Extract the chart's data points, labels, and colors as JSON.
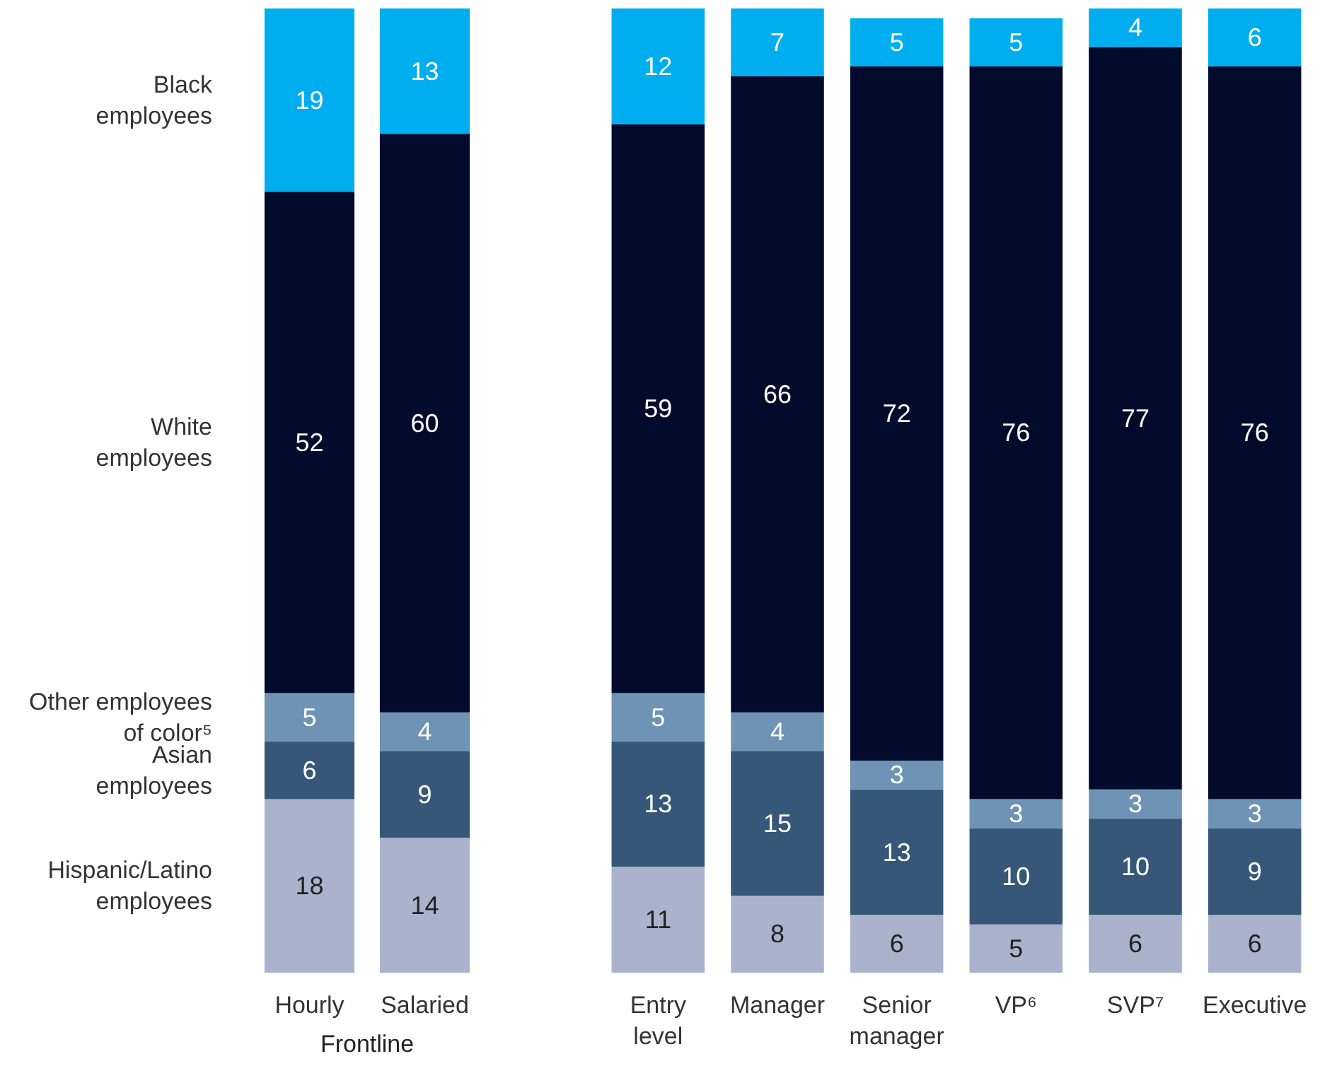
{
  "chart_data": [
    {
      "type": "bar",
      "stacked": true,
      "data_labels": true,
      "legend": "left",
      "xlabel": "Frontline",
      "categories": [
        "Hourly",
        "Salaried"
      ],
      "series": [
        {
          "name": "Hispanic/Latino employees",
          "color": "#a9b4cc",
          "values": [
            18,
            14
          ]
        },
        {
          "name": "Asian employees",
          "color": "#365778",
          "values": [
            6,
            9
          ]
        },
        {
          "name": "Other employees of color⁵",
          "color": "#6e93b5",
          "values": [
            5,
            4
          ]
        },
        {
          "name": "White employees",
          "color": "#020b2c",
          "values": [
            52,
            60
          ]
        },
        {
          "name": "Black employees",
          "color": "#00aeef",
          "values": [
            19,
            13
          ]
        }
      ]
    },
    {
      "type": "bar",
      "stacked": true,
      "data_labels": true,
      "categories": [
        "Entry level",
        "Manager",
        "Senior manager",
        "VP⁶",
        "SVP⁷",
        "Executive"
      ],
      "series": [
        {
          "color": "#a9b4cc",
          "values": [
            11,
            8,
            6,
            5,
            6,
            6
          ]
        },
        {
          "color": "#365778",
          "values": [
            13,
            15,
            13,
            10,
            10,
            9
          ]
        },
        {
          "color": "#6e93b5",
          "values": [
            5,
            4,
            3,
            3,
            3,
            3
          ]
        },
        {
          "color": "#020b2c",
          "values": [
            59,
            66,
            72,
            76,
            77,
            76
          ]
        },
        {
          "color": "#00aeef",
          "values": [
            12,
            7,
            5,
            5,
            4,
            6
          ]
        }
      ]
    }
  ]
}
